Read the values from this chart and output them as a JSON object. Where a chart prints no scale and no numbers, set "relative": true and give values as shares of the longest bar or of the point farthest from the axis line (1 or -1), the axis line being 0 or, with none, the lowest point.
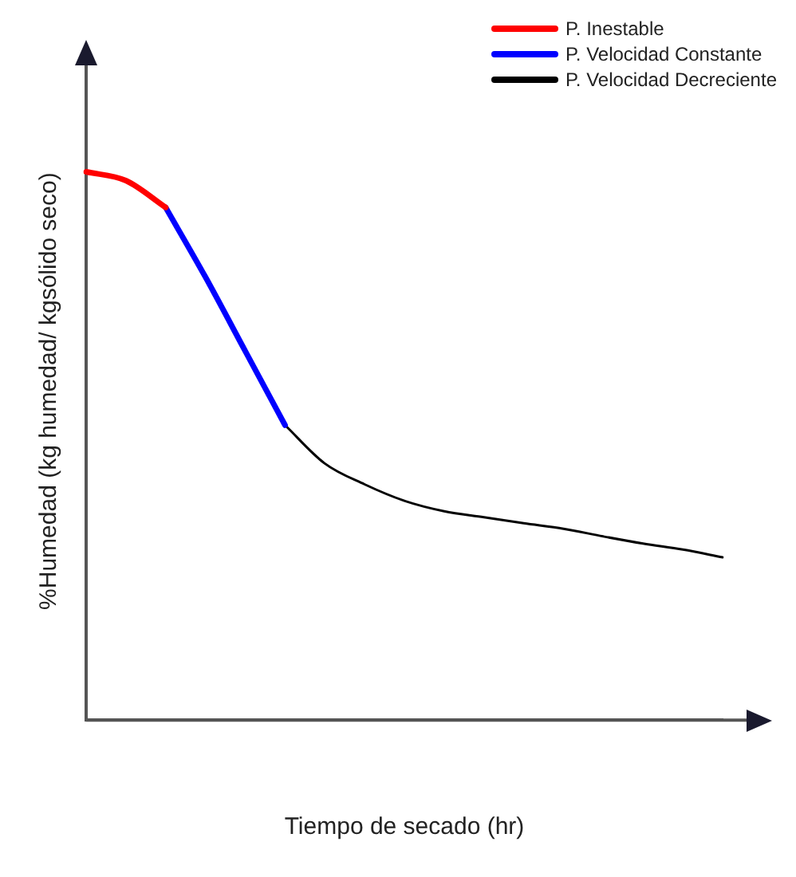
{
  "chart_data": {
    "type": "line",
    "relative": true,
    "xlabel": "Tiempo de secado (hr)",
    "ylabel": "%Humedad (kg humedad/ kgsólido seco)",
    "legend": "top right",
    "grid": false,
    "marker": "none",
    "line_style": "solid",
    "categories": [
      null,
      null,
      null,
      null,
      null,
      null,
      null,
      null,
      null,
      null,
      null,
      null,
      null,
      null,
      null,
      null,
      null
    ],
    "series": [
      {
        "name": "P. Inestable",
        "color": "#ff0000",
        "values": [
          1.0,
          0.984,
          0.935,
          null,
          null,
          null,
          null,
          null,
          null,
          null,
          null,
          null,
          null,
          null,
          null,
          null,
          null
        ]
      },
      {
        "name": "P. Velocidad Constante",
        "color": "#0000ff",
        "values": [
          null,
          null,
          0.935,
          0.808,
          0.673,
          0.538,
          null,
          null,
          null,
          null,
          null,
          null,
          null,
          null,
          null,
          null,
          null
        ]
      },
      {
        "name": "P. Velocidad Decreciente",
        "color": "#000000",
        "values": [
          null,
          null,
          null,
          null,
          null,
          0.538,
          0.468,
          0.43,
          0.4,
          0.381,
          0.37,
          0.359,
          0.349,
          0.335,
          0.322,
          0.311,
          0.297
        ]
      }
    ]
  }
}
